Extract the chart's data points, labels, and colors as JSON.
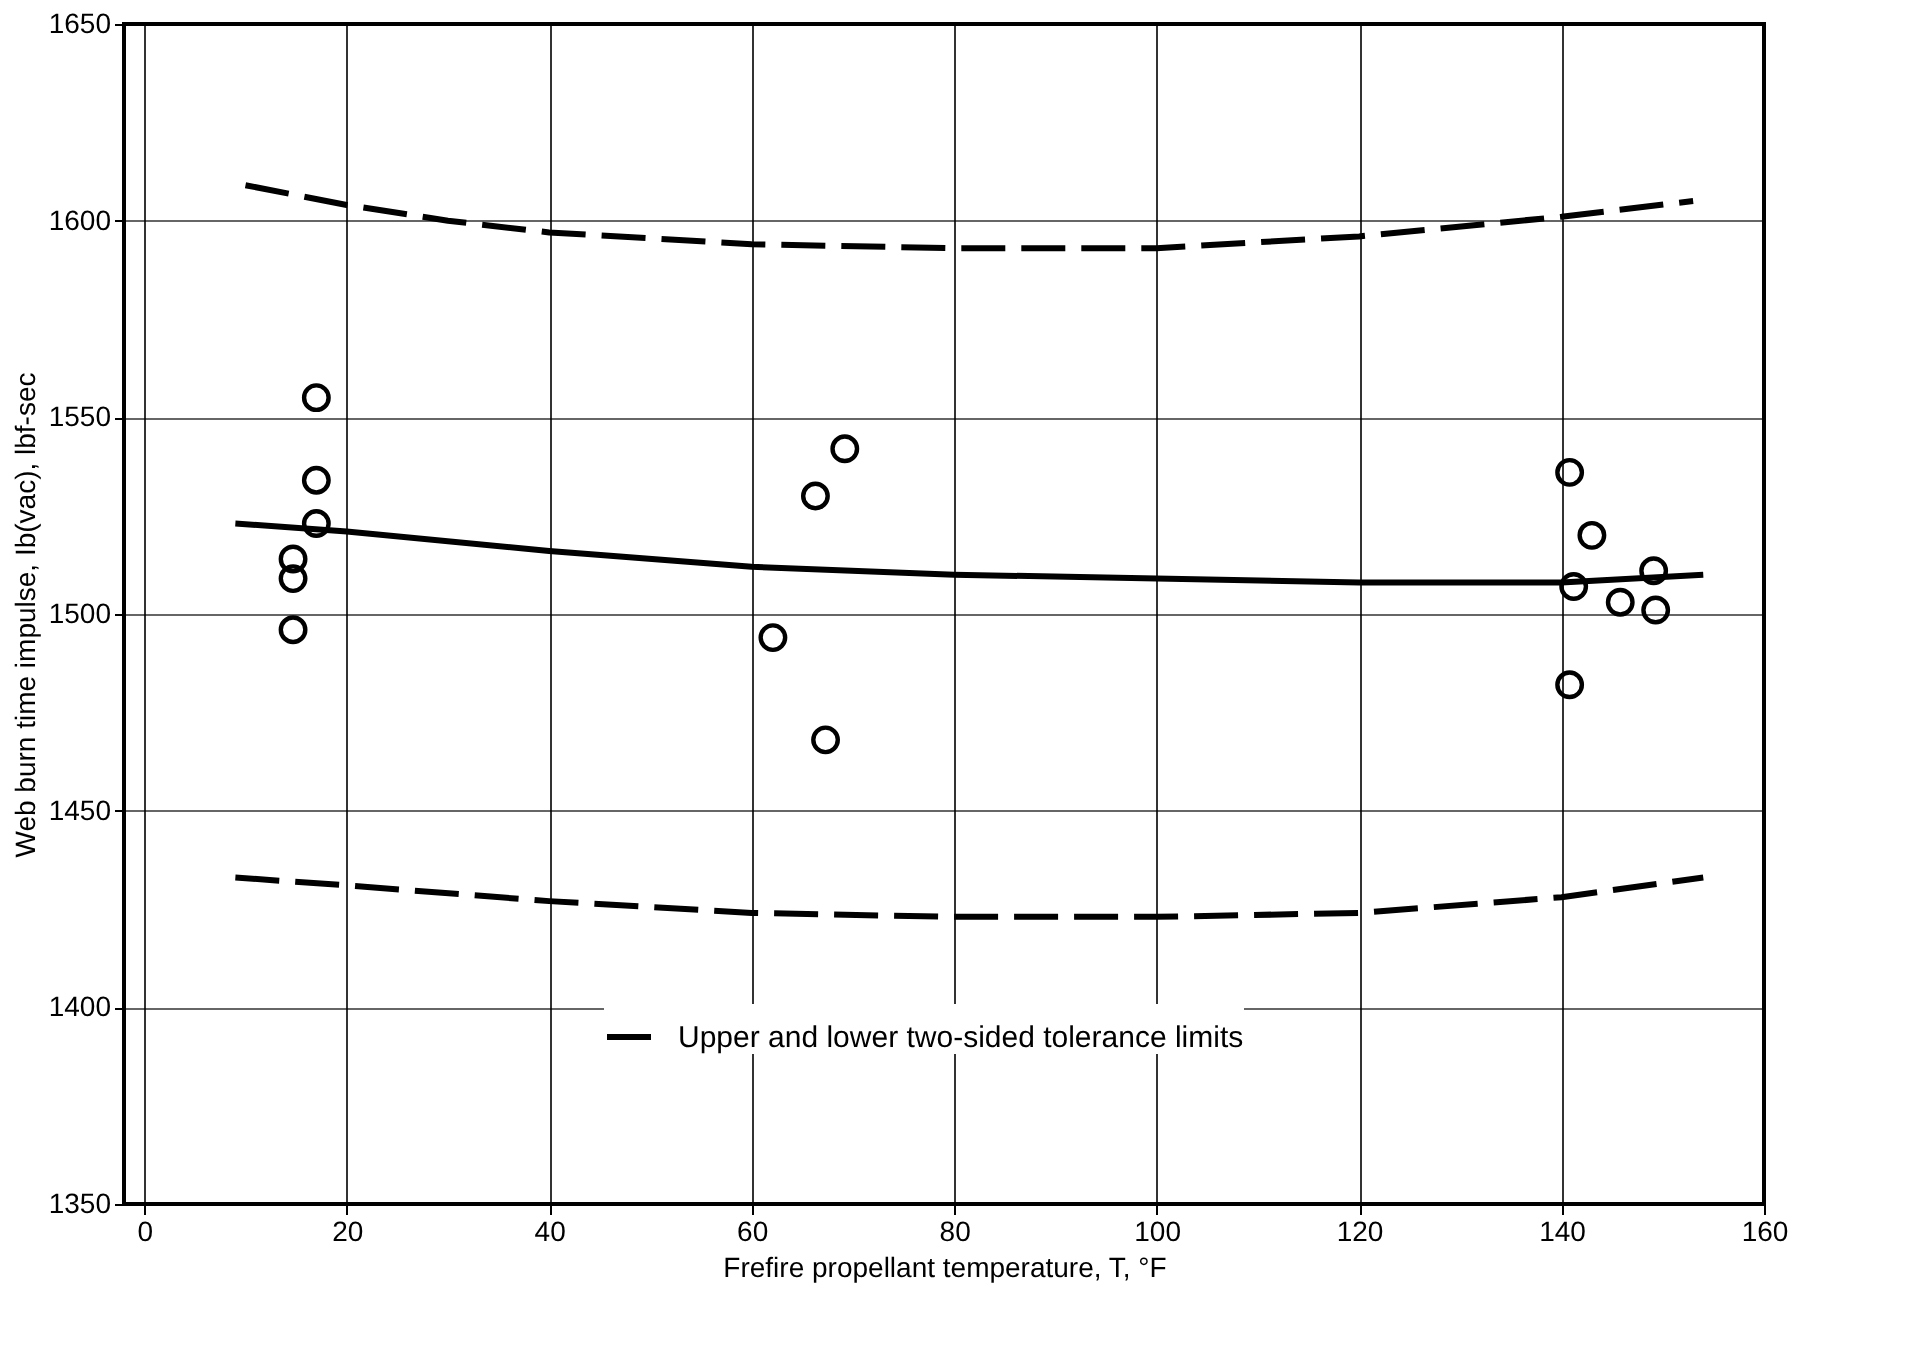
{
  "chart_data": {
    "type": "scatter",
    "xlabel": "Frefire propellant temperature, T, °F",
    "ylabel": "Web burn time impulse, Ib(vac), lbf-sec",
    "xlim": [
      -2,
      160
    ],
    "ylim": [
      1350,
      1650
    ],
    "xticks": [
      0,
      20,
      40,
      60,
      80,
      100,
      120,
      140,
      160
    ],
    "yticks": [
      1350,
      1400,
      1450,
      1500,
      1550,
      1600,
      1650
    ],
    "grid": true,
    "legend": "bottom",
    "series": [
      {
        "marker": "circle",
        "color": "#000000",
        "x": [
          17,
          17,
          17,
          14.7,
          14.7,
          14.7,
          69.2,
          66.3,
          62.1,
          67.3,
          140.8,
          143,
          141.2,
          149.1,
          145.8,
          149.3,
          140.8
        ],
        "values": [
          1555,
          1534,
          1523,
          1514,
          1509,
          1496,
          1542,
          1530,
          1494,
          1468,
          1536,
          1520,
          1507,
          1511,
          1503,
          1501,
          1482
        ]
      },
      {
        "type": "line",
        "marker": "none",
        "line_style": "solid",
        "color": "#000000",
        "x": [
          9,
          20,
          40,
          60,
          80,
          100,
          120,
          140,
          154
        ],
        "values": [
          1523,
          1521,
          1516,
          1512,
          1510,
          1509,
          1508,
          1508,
          1510
        ]
      },
      {
        "type": "line",
        "marker": "none",
        "line_style": "dashed",
        "color": "#000000",
        "name": "Upper and lower two-sided tolerance limits",
        "x": [
          10,
          20,
          30,
          40,
          60,
          80,
          100,
          120,
          140,
          153
        ],
        "values": [
          1609,
          1604,
          1600,
          1597,
          1594,
          1593,
          1593,
          1596,
          1601,
          1605
        ]
      },
      {
        "type": "line",
        "marker": "none",
        "line_style": "dashed",
        "color": "#000000",
        "x": [
          9,
          20,
          40,
          60,
          80,
          100,
          120,
          140,
          154
        ],
        "values": [
          1433,
          1431,
          1427,
          1424,
          1423,
          1423,
          1424,
          1428,
          1433
        ]
      }
    ]
  }
}
